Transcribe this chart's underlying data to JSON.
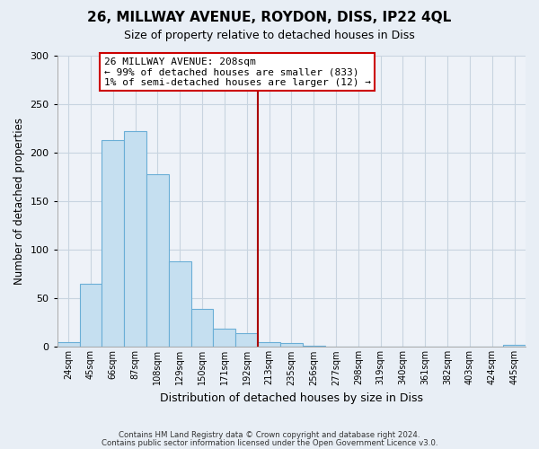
{
  "title": "26, MILLWAY AVENUE, ROYDON, DISS, IP22 4QL",
  "subtitle": "Size of property relative to detached houses in Diss",
  "xlabel": "Distribution of detached houses by size in Diss",
  "ylabel": "Number of detached properties",
  "bin_labels": [
    "24sqm",
    "45sqm",
    "66sqm",
    "87sqm",
    "108sqm",
    "129sqm",
    "150sqm",
    "171sqm",
    "192sqm",
    "213sqm",
    "235sqm",
    "256sqm",
    "277sqm",
    "298sqm",
    "319sqm",
    "340sqm",
    "361sqm",
    "382sqm",
    "403sqm",
    "424sqm",
    "445sqm"
  ],
  "bar_heights": [
    5,
    65,
    213,
    222,
    178,
    88,
    39,
    19,
    14,
    5,
    4,
    1,
    0,
    0,
    0,
    0,
    0,
    0,
    0,
    0,
    2
  ],
  "bar_color": "#c5dff0",
  "bar_edge_color": "#6aaed6",
  "vline_x_index": 9,
  "vline_color": "#aa0000",
  "annotation_title": "26 MILLWAY AVENUE: 208sqm",
  "annotation_line1": "← 99% of detached houses are smaller (833)",
  "annotation_line2": "1% of semi-detached houses are larger (12) →",
  "annotation_box_color": "#ffffff",
  "annotation_box_edge": "#cc0000",
  "ylim": [
    0,
    300
  ],
  "yticks": [
    0,
    50,
    100,
    150,
    200,
    250,
    300
  ],
  "footnote1": "Contains HM Land Registry data © Crown copyright and database right 2024.",
  "footnote2": "Contains public sector information licensed under the Open Government Licence v3.0.",
  "bg_color": "#e8eef5",
  "plot_bg_color": "#eef2f8",
  "grid_color": "#c8d4e0"
}
